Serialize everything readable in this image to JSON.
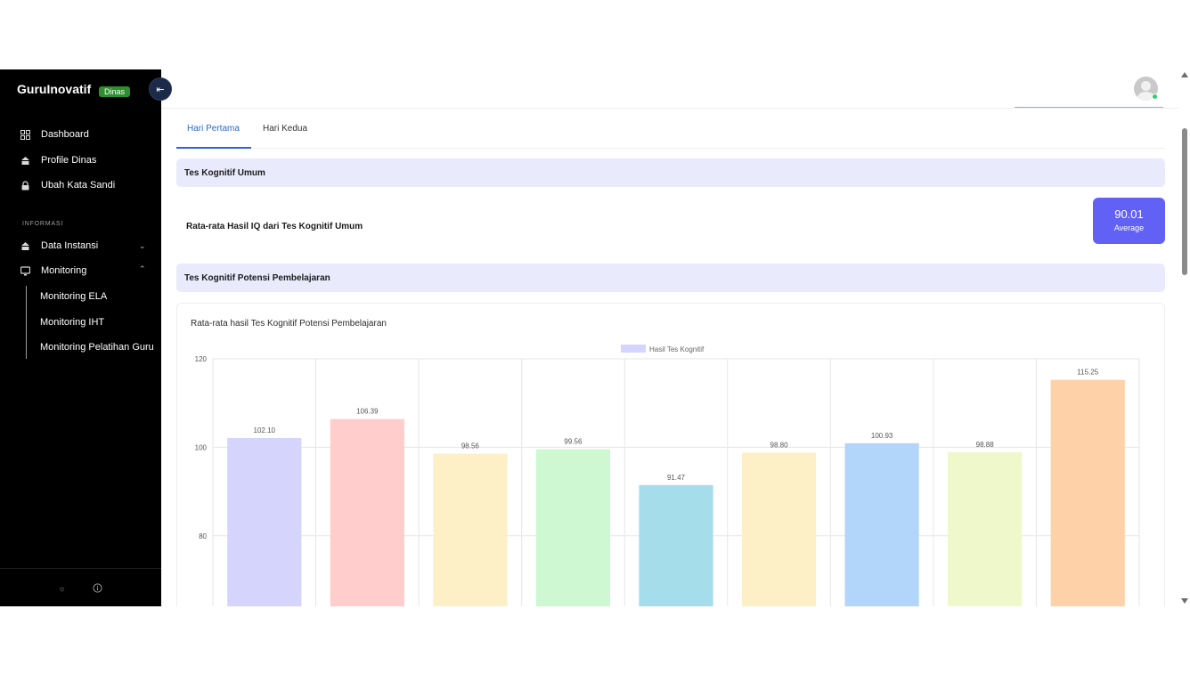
{
  "sidebar": {
    "brand": "GuruInovatif",
    "badge": "Dinas",
    "collapse_icon": "collapse-left-icon",
    "items": [
      {
        "label": "Dashboard",
        "icon": "grid-icon"
      },
      {
        "label": "Profile Dinas",
        "icon": "building-icon"
      },
      {
        "label": "Ubah Kata Sandi",
        "icon": "lock-icon"
      }
    ],
    "section_label": "INFORMASI",
    "info_items": [
      {
        "label": "Data Instansi",
        "icon": "building-icon",
        "expanded": false
      },
      {
        "label": "Monitoring",
        "icon": "monitor-icon",
        "expanded": true
      }
    ],
    "sub_items": [
      {
        "label": "Monitoring ELA"
      },
      {
        "label": "Monitoring IHT"
      },
      {
        "label": "Monitoring Pelatihan Guru"
      }
    ],
    "bottom_icons": [
      "sun-icon",
      "info-icon"
    ]
  },
  "tabs": [
    {
      "label": "Hari Pertama",
      "active": true
    },
    {
      "label": "Hari Kedua",
      "active": false
    }
  ],
  "sections": {
    "general": {
      "title": "Tes Kognitif Umum",
      "row_label": "Rata-rata Hasil IQ dari Tes Kognitif Umum",
      "average_value": "90.01",
      "average_label": "Average"
    },
    "learning": {
      "title": "Tes Kognitif Potensi Pembelajaran"
    }
  },
  "chart_data": {
    "type": "bar",
    "title": "Rata-rata hasil Tes Kognitif Potensi Pembelajaran",
    "xlabel": "",
    "ylabel": "",
    "ylim": [
      53,
      120
    ],
    "y_ticks": [
      60,
      80,
      100,
      120
    ],
    "grid": true,
    "legend_position": "top-center",
    "series": [
      {
        "name": "Hasil Tes Kognitif",
        "values": [
          102.1,
          106.39,
          98.56,
          99.56,
          91.47,
          98.8,
          100.93,
          98.88,
          115.25
        ],
        "labels": [
          "102.10",
          "106.39",
          "98.56",
          "99.56",
          "91.47",
          "98.80",
          "100.93",
          "98.88",
          "115.25"
        ],
        "colors": [
          "#d5d4fd",
          "#ffcdcb",
          "#fdefc6",
          "#cdf8d1",
          "#a5ddeb",
          "#fdefc6",
          "#b2d6fa",
          "#eef8cb",
          "#fed1a9"
        ]
      }
    ],
    "legend_color": "#d5d4fd"
  },
  "colors": {
    "accent": "#2c66d4",
    "average_box": "#6161f5",
    "section_bg": "#e9eafb",
    "status_online": "#2ecc71"
  }
}
